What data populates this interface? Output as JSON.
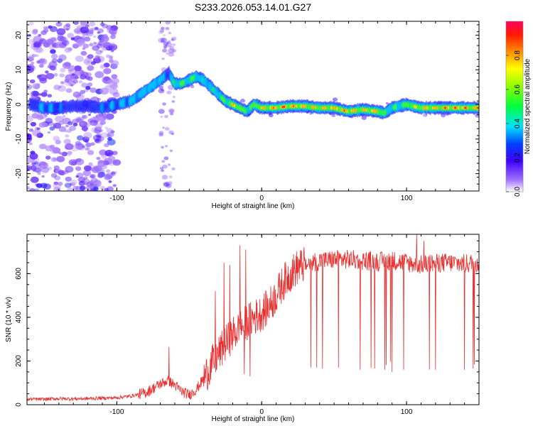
{
  "figure_title": "S233.2026.053.14.01.G27",
  "colors": {
    "snr_line": "#e83030",
    "ridge_peak": "#ff0000",
    "axes": "#000000"
  },
  "chart_data": [
    {
      "type": "heatmap",
      "name": "spectrogram",
      "title": "S233.2026.053.14.01.G27",
      "xlabel": "Height of straight line (km)",
      "ylabel": "Frequency (Hz)",
      "xlim": [
        -162,
        150
      ],
      "ylim": [
        -25,
        24
      ],
      "xticks": [
        -100,
        0,
        100
      ],
      "xtick_labels": [
        "-100",
        "0",
        "100"
      ],
      "yticks": [
        -20,
        -10,
        0,
        10,
        20
      ],
      "ytick_labels": [
        "-20",
        "-10",
        "0",
        "10",
        "20"
      ],
      "colorbar": {
        "label": "Normalized spectral amplitude",
        "range": [
          0,
          1
        ],
        "ticks": [
          0.0,
          0.2,
          0.4,
          0.6,
          0.8
        ],
        "tick_labels": [
          "0.0",
          "0.2",
          "0.4",
          "0.6",
          "0.8"
        ]
      },
      "ridge_x": [
        -160,
        -150,
        -140,
        -130,
        -120,
        -110,
        -100,
        -90,
        -80,
        -70,
        -64,
        -60,
        -55,
        -50,
        -45,
        -40,
        -35,
        -30,
        -25,
        -20,
        -15,
        -10,
        -5,
        0,
        10,
        20,
        30,
        40,
        50,
        60,
        70,
        80,
        85,
        90,
        95,
        100,
        110,
        120,
        130,
        140,
        150
      ],
      "ridge_freq": [
        0,
        -1,
        -1,
        -0.5,
        -0.5,
        -1,
        0,
        1,
        4,
        7,
        9,
        6,
        6,
        7,
        8,
        7,
        5,
        3,
        1,
        0,
        -1,
        -2,
        0,
        -1,
        -1,
        -0.5,
        -0.5,
        -1,
        -1,
        -2,
        -1.5,
        -2,
        -2.5,
        -1,
        -0.5,
        0,
        -1,
        -1,
        -1,
        -1,
        -1
      ],
      "ridge_amplitude": [
        0.3,
        0.4,
        0.35,
        0.3,
        0.3,
        0.35,
        0.4,
        0.45,
        0.5,
        0.5,
        0.35,
        0.55,
        0.6,
        0.6,
        0.55,
        0.5,
        0.5,
        0.55,
        0.6,
        0.8,
        0.8,
        0.65,
        0.7,
        0.85,
        0.95,
        0.95,
        0.9,
        0.85,
        0.9,
        0.95,
        0.85,
        0.9,
        0.55,
        0.6,
        0.55,
        0.7,
        0.8,
        0.9,
        0.95,
        0.95,
        0.9
      ]
    },
    {
      "type": "line",
      "name": "snr",
      "xlabel": "Height of straight line (km)",
      "ylabel": "SNR (10 * v/v)",
      "xlim": [
        -162,
        150
      ],
      "ylim": [
        0,
        780
      ],
      "xticks": [
        -100,
        0,
        100
      ],
      "xtick_labels": [
        "-100",
        "0",
        "100"
      ],
      "yticks": [
        0,
        200,
        400,
        600
      ],
      "ytick_labels": [
        "0",
        "200",
        "400",
        "600"
      ],
      "series": [
        {
          "name": "SNR",
          "x": [
            -162,
            -150,
            -140,
            -130,
            -120,
            -110,
            -100,
            -90,
            -80,
            -75,
            -70,
            -65,
            -60,
            -55,
            -50,
            -45,
            -40,
            -35,
            -30,
            -25,
            -20,
            -15,
            -10,
            -5,
            0,
            5,
            10,
            15,
            20,
            25,
            30,
            35,
            40,
            45,
            50,
            60,
            70,
            80,
            90,
            100,
            110,
            120,
            130,
            140,
            150
          ],
          "y": [
            25,
            25,
            28,
            27,
            28,
            30,
            32,
            40,
            55,
            75,
            95,
            110,
            90,
            60,
            45,
            70,
            120,
            180,
            230,
            280,
            320,
            350,
            380,
            400,
            420,
            450,
            500,
            560,
            600,
            630,
            640,
            650,
            660,
            660,
            665,
            665,
            660,
            655,
            660,
            650,
            640,
            650,
            650,
            645,
            650
          ],
          "dropouts_x": [
            -12,
            -8,
            38,
            42,
            68,
            78,
            85,
            90,
            98,
            112,
            120,
            140,
            146
          ],
          "dropouts_y": [
            140,
            130,
            170,
            165,
            160,
            165,
            160,
            150,
            160,
            130,
            160,
            160,
            165
          ],
          "spikes_x": [
            -64,
            -32,
            -26,
            -22,
            -15,
            -11,
            107,
            112
          ],
          "spikes_y": [
            265,
            520,
            650,
            640,
            730,
            710,
            780,
            750
          ]
        }
      ]
    }
  ]
}
